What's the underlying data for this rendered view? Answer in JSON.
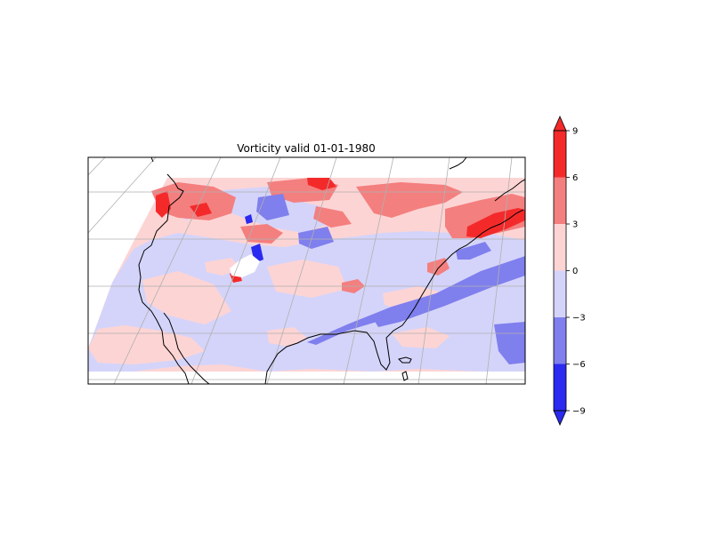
{
  "chart_data": {
    "type": "heatmap",
    "title": "Vorticity valid 01-01-1980",
    "xlabel": "",
    "ylabel": "",
    "grid": true,
    "colorbar": {
      "ticks": [
        -9,
        -6,
        -3,
        0,
        3,
        6,
        9
      ],
      "tick_labels": [
        "−9",
        "−6",
        "−3",
        "0",
        "3",
        "6",
        "9"
      ],
      "levels": [
        {
          "range": [
            -9,
            -6
          ],
          "color": "#2a2af0"
        },
        {
          "range": [
            -6,
            -3
          ],
          "color": "#7f7fee"
        },
        {
          "range": [
            -3,
            0
          ],
          "color": "#d4d4fa"
        },
        {
          "range": [
            0,
            3
          ],
          "color": "#fdd4d4"
        },
        {
          "range": [
            3,
            6
          ],
          "color": "#f47f7f"
        },
        {
          "range": [
            6,
            9
          ],
          "color": "#f42a2a"
        }
      ],
      "extend": "both"
    }
  },
  "colors": {
    "strong_negative": "#2a2af0",
    "moderate_negative": "#7f7fee",
    "weak_negative": "#d4d4fa",
    "weak_positive": "#fdd4d4",
    "moderate_positive": "#f47f7f",
    "strong_positive": "#f42a2a",
    "coastline": "#000000",
    "gridline": "#b0b0b0"
  }
}
